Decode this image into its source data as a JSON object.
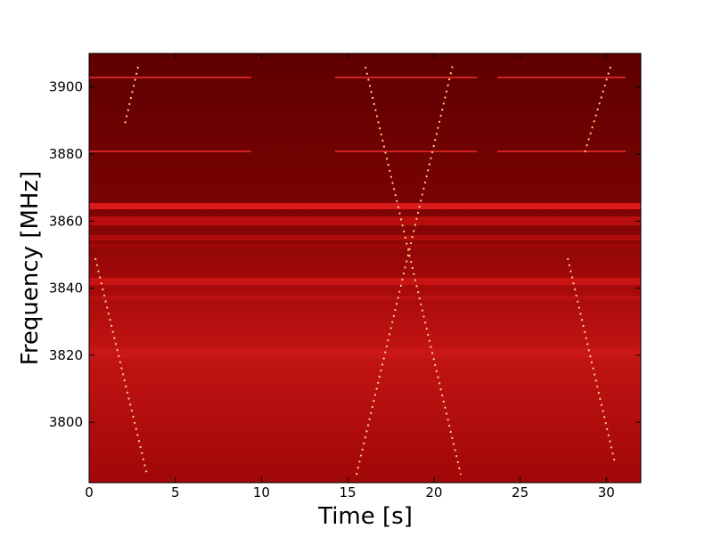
{
  "chart_data": {
    "type": "spectrogram",
    "x_label": "Time [s]",
    "y_label": "Frequency [MHz]",
    "xlim": [
      0,
      32
    ],
    "xticks": [
      0,
      5,
      10,
      15,
      20,
      25,
      30
    ],
    "ylim": [
      3782,
      3910
    ],
    "yticks": [
      3800,
      3820,
      3840,
      3860,
      3880,
      3900
    ]
  }
}
